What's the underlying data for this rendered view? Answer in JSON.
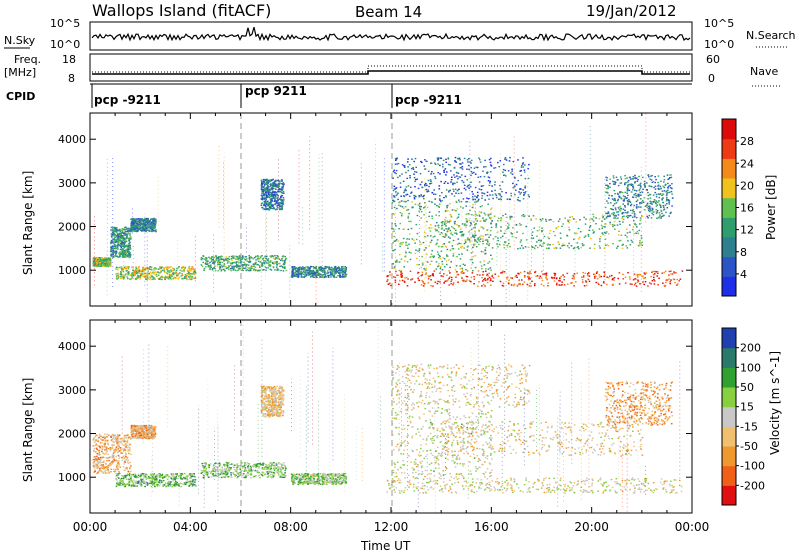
{
  "header": {
    "station": "Wallops Island (fitACF)",
    "beam": "Beam 14",
    "date": "19/Jan/2012"
  },
  "top_panels": {
    "nsky_label": "N.Sky",
    "nsky_ticks": [
      "10^5",
      "10^0"
    ],
    "nsearch_label": "N.Search",
    "nsearch_ticks": [
      "10^5",
      "10^0"
    ],
    "freq_label": "Freq.",
    "freq_unit": "[MHz]",
    "freq_ticks": [
      "18",
      "8"
    ],
    "nave_label": "Nave",
    "nave_ticks": [
      "60",
      "0"
    ],
    "cpid_label": "CPID",
    "cpid_segments": [
      {
        "start_hour": 0.0,
        "label": "pcp -9211"
      },
      {
        "start_hour": 6.0,
        "label": "pcp 9211"
      },
      {
        "start_hour": 12.0,
        "label": "pcp -9211"
      }
    ]
  },
  "chart_data": [
    {
      "type": "heatmap",
      "panel": "power",
      "xlabel": "",
      "ylabel": "Slant Range [km]",
      "xlim_hours": [
        0,
        24
      ],
      "ylim": [
        180,
        4600
      ],
      "yticks": [
        1000,
        2000,
        3000,
        4000
      ],
      "colorbar": {
        "label": "Power [dB]",
        "range": [
          0,
          32
        ],
        "ticks": [
          "4",
          "8",
          "12",
          "16",
          "20",
          "24",
          "28"
        ],
        "colors": [
          "#1f2fe8",
          "#2b55c6",
          "#2e7f8f",
          "#2e9e6e",
          "#60c050",
          "#f0c21e",
          "#f58a1c",
          "#ee3b16",
          "#dd0a0a"
        ]
      },
      "bands": [
        {
          "t": [
            0.1,
            0.8
          ],
          "r": [
            1100,
            1300
          ],
          "level": 0.5
        },
        {
          "t": [
            0.8,
            1.6
          ],
          "r": [
            1300,
            2000
          ],
          "level": 0.35
        },
        {
          "t": [
            1.6,
            2.6
          ],
          "r": [
            1900,
            2200
          ],
          "level": 0.3
        },
        {
          "t": [
            1.0,
            4.2
          ],
          "r": [
            800,
            1100
          ],
          "level": 0.55
        },
        {
          "t": [
            4.4,
            7.8
          ],
          "r": [
            1000,
            1350
          ],
          "level": 0.4
        },
        {
          "t": [
            8.0,
            10.2
          ],
          "r": [
            850,
            1100
          ],
          "level": 0.3
        },
        {
          "t": [
            6.8,
            7.7
          ],
          "r": [
            2400,
            3100
          ],
          "level": 0.25
        },
        {
          "t": [
            11.8,
            23.6
          ],
          "r": [
            650,
            1000
          ],
          "level": 0.85
        },
        {
          "t": [
            12.0,
            16.0
          ],
          "r": [
            1000,
            2600
          ],
          "level": 0.45
        },
        {
          "t": [
            14.0,
            22.0
          ],
          "r": [
            1500,
            2300
          ],
          "level": 0.45
        },
        {
          "t": [
            20.5,
            23.2
          ],
          "r": [
            2200,
            3200
          ],
          "level": 0.3
        },
        {
          "t": [
            12.0,
            17.5
          ],
          "r": [
            2600,
            3600
          ],
          "level": 0.2
        }
      ]
    },
    {
      "type": "heatmap",
      "panel": "velocity",
      "xlabel": "Time UT",
      "ylabel": "Slant Range [km]",
      "xlim_hours": [
        0,
        24
      ],
      "ylim": [
        180,
        4600
      ],
      "yticks": [
        1000,
        2000,
        3000,
        4000
      ],
      "xticks": [
        "00:00",
        "04:00",
        "08:00",
        "12:00",
        "16:00",
        "20:00",
        "00:00"
      ],
      "colorbar": {
        "label": "Velocity [m s^-1]",
        "ticks": [
          "-200",
          "-100",
          "-50",
          "-15",
          "15",
          "50",
          "100",
          "200"
        ],
        "colors": [
          "#e01010",
          "#f06018",
          "#f09830",
          "#f0c070",
          "#c8c8c8",
          "#88d040",
          "#30a030",
          "#2a7a6a",
          "#2040b0"
        ]
      },
      "bands": [
        {
          "t": [
            0.1,
            1.6
          ],
          "r": [
            1100,
            2000
          ],
          "level": 0.35
        },
        {
          "t": [
            1.6,
            2.6
          ],
          "r": [
            1900,
            2200
          ],
          "level": 0.35
        },
        {
          "t": [
            1.0,
            4.2
          ],
          "r": [
            800,
            1100
          ],
          "level": 0.65
        },
        {
          "t": [
            4.4,
            7.8
          ],
          "r": [
            1000,
            1350
          ],
          "level": 0.62
        },
        {
          "t": [
            8.0,
            10.2
          ],
          "r": [
            850,
            1100
          ],
          "level": 0.6
        },
        {
          "t": [
            6.8,
            7.7
          ],
          "r": [
            2400,
            3100
          ],
          "level": 0.4
        },
        {
          "t": [
            11.8,
            23.6
          ],
          "r": [
            650,
            1000
          ],
          "level": 0.48
        },
        {
          "t": [
            12.0,
            16.0
          ],
          "r": [
            1000,
            2600
          ],
          "level": 0.5
        },
        {
          "t": [
            14.0,
            22.0
          ],
          "r": [
            1500,
            2300
          ],
          "level": 0.42
        },
        {
          "t": [
            20.5,
            23.2
          ],
          "r": [
            2200,
            3200
          ],
          "level": 0.3
        },
        {
          "t": [
            12.0,
            17.5
          ],
          "r": [
            2600,
            3600
          ],
          "level": 0.45
        }
      ]
    }
  ]
}
